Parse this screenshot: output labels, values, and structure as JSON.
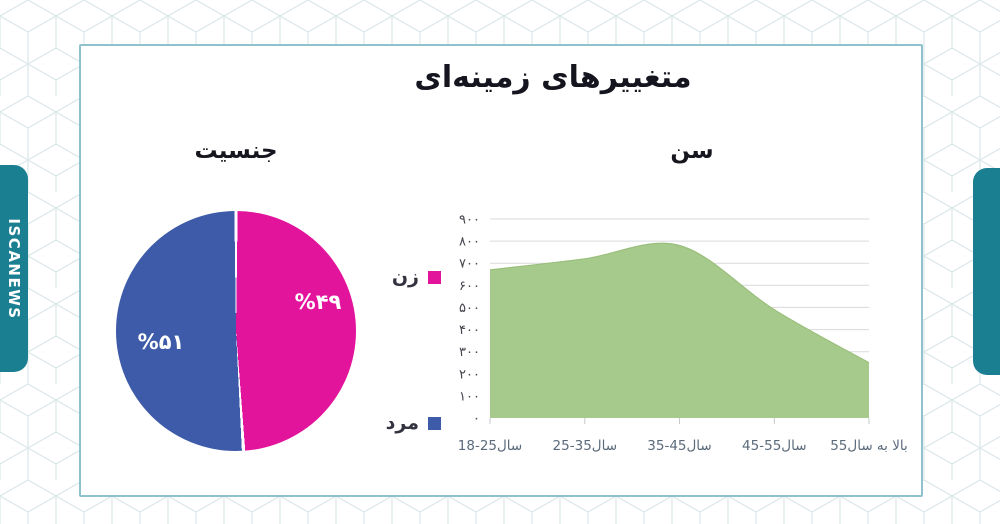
{
  "brand": {
    "badge_text": "ISCANEWS",
    "badge_color": "#1a7f91"
  },
  "infographic": {
    "title": "متغییرهای زمینه‌ای",
    "gender_heading": "جنسیت",
    "age_heading": "سن"
  },
  "colors": {
    "female_pink": "#e3149c",
    "male_blue": "#3d5ba8",
    "area_green": "#a6ca8b",
    "card_border_teal": "#8fc2cc"
  },
  "chart_data": [
    {
      "type": "pie",
      "title": "جنسیت",
      "labels": [
        "زن",
        "مرد"
      ],
      "values": [
        49,
        51
      ],
      "value_labels": [
        "%۴۹",
        "%۵۱"
      ],
      "colors": [
        "#e3149c",
        "#3d5ba8"
      ],
      "start_angle": "12-oclock",
      "direction": "clockwise",
      "legend_position": "right-of-chart"
    },
    {
      "type": "area",
      "title": "سن",
      "categories": [
        "سال25-18",
        "سال35-25",
        "سال45-35",
        "سال55-45",
        "55⁨سال⁩ ⁨به⁩ ⁨بالا⁩"
      ],
      "values": [
        670,
        720,
        780,
        490,
        250
      ],
      "ylim": [
        0,
        900
      ],
      "ytick_step": 100,
      "ytick_labels": [
        "۰",
        "۱۰۰",
        "۲۰۰",
        "۳۰۰",
        "۴۰۰",
        "۵۰۰",
        "۶۰۰",
        "۷۰۰",
        "۸۰۰",
        "۹۰۰"
      ],
      "grid": "horizontal",
      "fill_color": "#a6ca8b",
      "legend": "none"
    }
  ]
}
